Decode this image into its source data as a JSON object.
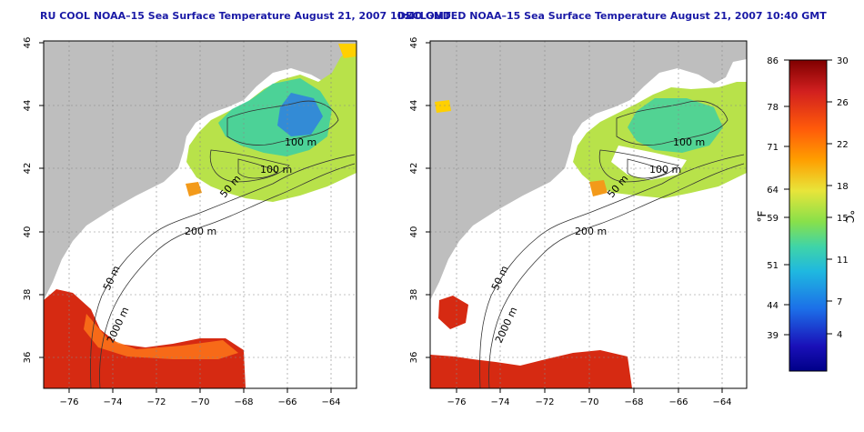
{
  "panels": [
    {
      "title": "RU COOL NOAA–15 Sea Surface Temperature August 21, 2007 10:40 GMT",
      "contour_labels": [
        "100 m",
        "100 m",
        "50 m",
        "200 m",
        "50 m",
        "2000 m"
      ]
    },
    {
      "title": "DECLOUDED NOAA–15 Sea Surface Temperature August 21, 2007 10:40 GMT",
      "contour_labels": [
        "100 m",
        "100 m",
        "50 m",
        "200 m",
        "50 m",
        "2000 m"
      ]
    }
  ],
  "axes": {
    "x_ticks": [
      "−76",
      "−74",
      "−72",
      "−70",
      "−68",
      "−66",
      "−64"
    ],
    "y_ticks": [
      "46",
      "44",
      "42",
      "40",
      "38",
      "36"
    ],
    "grid": true,
    "grid_style": "dotted"
  },
  "colorbar": {
    "fahrenheit_label": "°F",
    "celsius_label": "°C",
    "fahrenheit_ticks": [
      "86",
      "78",
      "71",
      "64",
      "59",
      "51",
      "44",
      "39"
    ],
    "celsius_ticks": [
      "30",
      "26",
      "22",
      "18",
      "15",
      "11",
      "7",
      "4"
    ],
    "colors": [
      "#7f0000",
      "#d11f1f",
      "#ff5a0a",
      "#ff9e00",
      "#e8e53a",
      "#88e04a",
      "#3fd4a8",
      "#1fb8e0",
      "#1c6fe8",
      "#1a10b8",
      "#000088"
    ]
  },
  "colors": {
    "land": "#bebebe",
    "title": "#1a1aa6",
    "warm_sst": "#d62a12",
    "mid_sst": "#c8e63a",
    "cool_sst": "#3dcf9c"
  }
}
